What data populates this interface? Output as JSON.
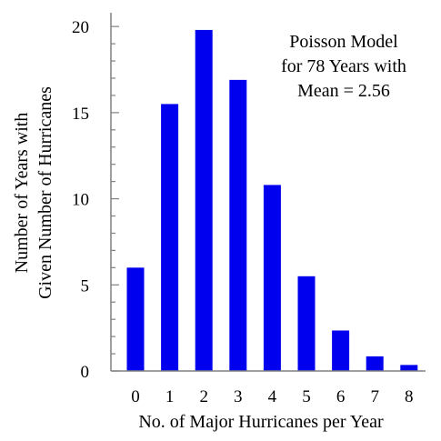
{
  "chart_data": {
    "type": "bar",
    "categories": [
      "0",
      "1",
      "2",
      "3",
      "4",
      "5",
      "6",
      "7",
      "8"
    ],
    "values": [
      6.0,
      15.5,
      19.8,
      16.9,
      10.8,
      5.5,
      2.35,
      0.85,
      0.35
    ],
    "xlabel": "No. of Major Hurricanes per Year",
    "ylabel_lines": [
      "Number of Years with",
      "Given Number of Hurricanes"
    ],
    "annotation_lines": [
      "Poisson Model",
      "for 78 Years with",
      "Mean = 2.56"
    ],
    "yticks": [
      0,
      5,
      10,
      15,
      20
    ],
    "ylim": [
      0,
      20.8
    ],
    "grid": false,
    "bar_color": "#0000ee"
  }
}
